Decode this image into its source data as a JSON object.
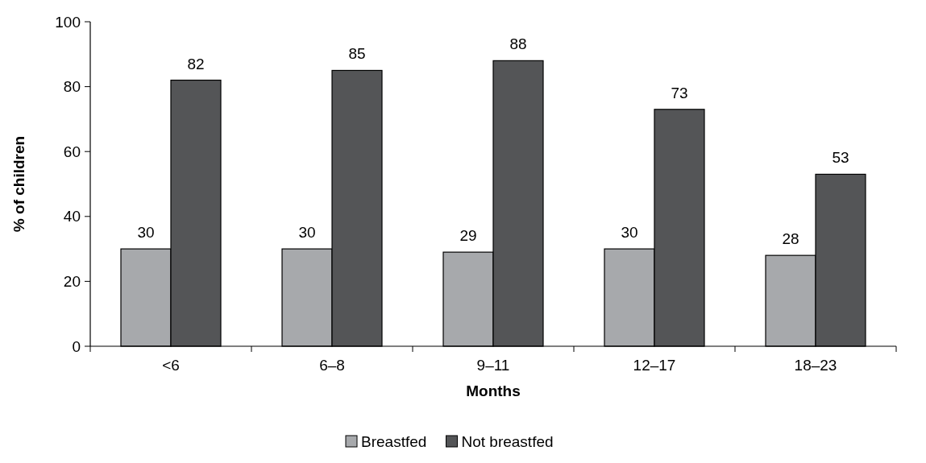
{
  "chart_data": {
    "type": "bar",
    "xlabel": "Months",
    "ylabel": "% of children",
    "categories": [
      "<6",
      "6–8",
      "9–11",
      "12–17",
      "18–23"
    ],
    "series": [
      {
        "name": "Breastfed",
        "color": "#a7a9ac",
        "values": [
          30,
          30,
          29,
          30,
          28
        ]
      },
      {
        "name": "Not breastfed",
        "color": "#545557",
        "values": [
          82,
          85,
          88,
          73,
          53
        ]
      }
    ],
    "ylim": [
      0,
      100
    ],
    "yticks": [
      0,
      20,
      40,
      60,
      80,
      100
    ],
    "grid": false,
    "legend": "bottom",
    "data_labels": true
  }
}
